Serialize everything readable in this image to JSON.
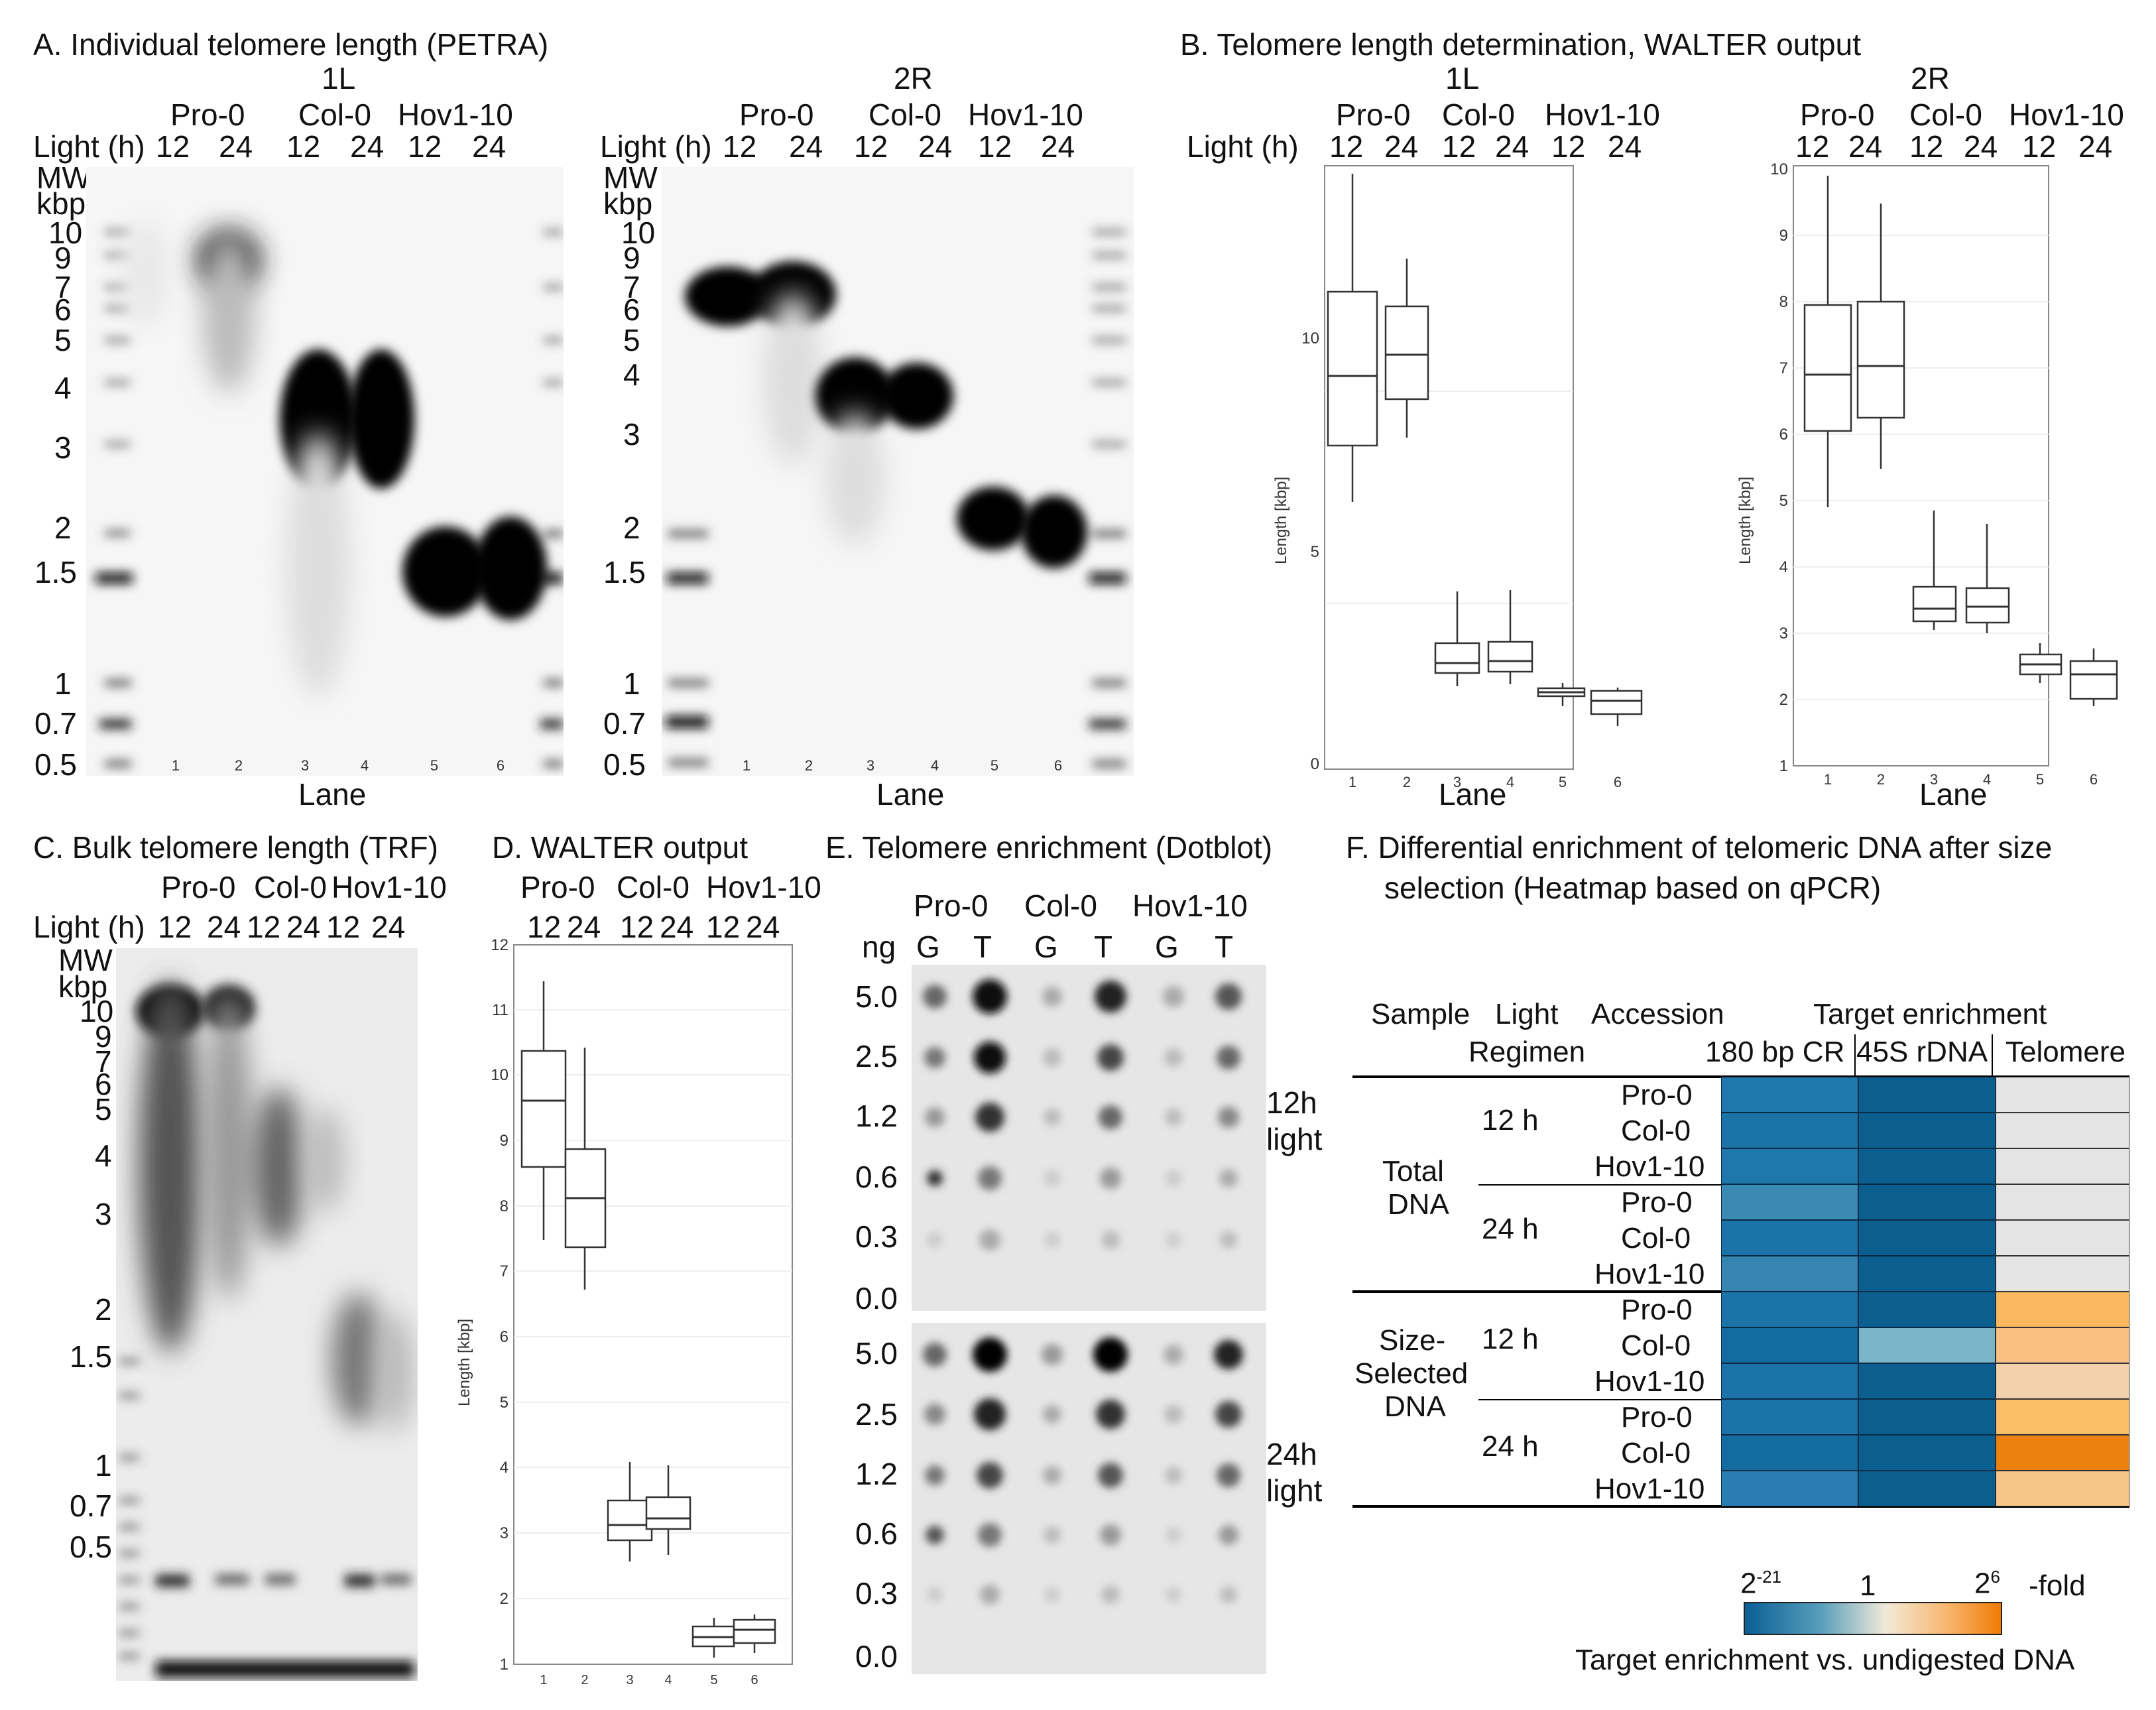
{
  "panelA": {
    "title": "A. Individual telomere length (PETRA)",
    "blots": [
      {
        "chrom": "1L",
        "accessions": [
          "Pro-0",
          "Col-0",
          "Hov1-10"
        ],
        "light_label": "Light (h)",
        "light": [
          "12",
          "24",
          "12",
          "24",
          "12",
          "24"
        ],
        "mw": "MW",
        "kbp": "kbp",
        "markers": [
          "10",
          "9",
          "7",
          "6",
          "5",
          "4",
          "3",
          "2",
          "1.5",
          "1",
          "0.7",
          "0.5"
        ],
        "lanes": [
          "1",
          "2",
          "3",
          "4",
          "5",
          "6"
        ],
        "lane_label": "Lane",
        "asterisk": "*"
      },
      {
        "chrom": "2R",
        "accessions": [
          "Pro-0",
          "Col-0",
          "Hov1-10"
        ],
        "light_label": "Light (h)",
        "light": [
          "12",
          "24",
          "12",
          "24",
          "12",
          "24"
        ],
        "mw": "MW",
        "kbp": "kbp",
        "markers": [
          "10",
          "9",
          "7",
          "6",
          "5",
          "4",
          "3",
          "2",
          "1.5",
          "1",
          "0.7",
          "0.5"
        ],
        "lanes": [
          "1",
          "2",
          "3",
          "4",
          "5",
          "6"
        ],
        "lane_label": "Lane"
      }
    ]
  },
  "panelB": {
    "title": "B. Telomere length determination, WALTER output",
    "light_label": "Light (h)",
    "plots": [
      {
        "chrom": "1L",
        "accessions": [
          "Pro-0",
          "Col-0",
          "Hov1-10"
        ],
        "light": [
          "12",
          "24",
          "12",
          "24",
          "12",
          "24"
        ],
        "ylabel": "Length [kbp]",
        "yticks": [
          "0",
          "5",
          "10"
        ],
        "lanes": [
          "1",
          "2",
          "3",
          "4",
          "5",
          "6"
        ],
        "xlabel": "Lane"
      },
      {
        "chrom": "2R",
        "accessions": [
          "Pro-0",
          "Col-0",
          "Hov1-10"
        ],
        "light": [
          "12",
          "24",
          "12",
          "24",
          "12",
          "24"
        ],
        "ylabel": "Length [kbp]",
        "yticks": [
          "1",
          "2",
          "3",
          "4",
          "5",
          "6",
          "7",
          "8",
          "9",
          "10"
        ],
        "lanes": [
          "1",
          "2",
          "3",
          "4",
          "5",
          "6"
        ],
        "xlabel": "Lane"
      }
    ]
  },
  "panelC": {
    "title": "C. Bulk telomere length (TRF)",
    "accessions": [
      "Pro-0",
      "Col-0",
      "Hov1-10"
    ],
    "light_label": "Light (h)",
    "light": [
      "12",
      "24",
      "12",
      "24",
      "12",
      "24"
    ],
    "mw": "MW",
    "kbp": "kbp",
    "markers": [
      "10",
      "9",
      "7",
      "6",
      "5",
      "4",
      "3",
      "2",
      "1.5",
      "1",
      "0.7",
      "0.5"
    ],
    "asterisks": [
      "**",
      "*"
    ]
  },
  "panelD": {
    "title": "D. WALTER output",
    "accessions": [
      "Pro-0",
      "Col-0",
      "Hov1-10"
    ],
    "light": [
      "12",
      "24",
      "12",
      "24",
      "12",
      "24"
    ],
    "ylabel": "Length [kbp]",
    "yticks": [
      "1",
      "2",
      "3",
      "4",
      "5",
      "6",
      "7",
      "8",
      "9",
      "10",
      "11",
      "12"
    ],
    "lanes": [
      "1",
      "2",
      "3",
      "4",
      "5",
      "6"
    ]
  },
  "panelE": {
    "title": "E. Telomere enrichment (Dotblot)",
    "accessions": [
      "Pro-0",
      "Col-0",
      "Hov1-10"
    ],
    "ng": "ng",
    "cols": [
      "G",
      "T",
      "G",
      "T",
      "G",
      "T"
    ],
    "amounts": [
      "5.0",
      "2.5",
      "1.2",
      "0.6",
      "0.3",
      "0.0"
    ],
    "blocks": [
      {
        "l1": "12h",
        "l2": "light"
      },
      {
        "l1": "24h",
        "l2": "light"
      }
    ]
  },
  "panelF": {
    "title1": "F. Differential enrichment of telomeric DNA after size",
    "title2": "selection (Heatmap based on qPCR)",
    "headers": {
      "sample": "Sample",
      "light1": "Light",
      "light2": "Regimen",
      "accession": "Accession",
      "target": "Target enrichment",
      "c1": "180 bp CR",
      "c2": "45S rDNA",
      "c3": "Telomere"
    },
    "groups": [
      {
        "l1": "Total",
        "l2": "DNA",
        "l3": "",
        "sub": [
          {
            "light": "12 h",
            "acc": [
              "Pro-0",
              "Col-0",
              "Hov1-10"
            ]
          },
          {
            "light": "24 h",
            "acc": [
              "Pro-0",
              "Col-0",
              "Hov1-10"
            ]
          }
        ]
      },
      {
        "l1": "Size-",
        "l2": "Selected",
        "l3": "DNA",
        "sub": [
          {
            "light": "12 h",
            "acc": [
              "Pro-0",
              "Col-0",
              "Hov1-10"
            ]
          },
          {
            "light": "24 h",
            "acc": [
              "Pro-0",
              "Col-0",
              "Hov1-10"
            ]
          }
        ]
      }
    ],
    "colors": [
      [
        "#1f78ab",
        "#0b5f8f",
        "#e4e4e4"
      ],
      [
        "#1b73a7",
        "#0b5f8f",
        "#e4e4e4"
      ],
      [
        "#1f78ab",
        "#0b5f8f",
        "#e4e4e4"
      ],
      [
        "#3b8ab4",
        "#0b5f8f",
        "#e4e4e4"
      ],
      [
        "#1b73a7",
        "#0b5f8f",
        "#e4e4e4"
      ],
      [
        "#3684b0",
        "#0b5f8f",
        "#e4e4e4"
      ],
      [
        "#1b73a7",
        "#0b5f8f",
        "#fbb85e"
      ],
      [
        "#136b9f",
        "#79b4c9",
        "#f9bf83"
      ],
      [
        "#1b73a7",
        "#0b5f8f",
        "#f2d1ad"
      ],
      [
        "#1b73a7",
        "#0b5f8f",
        "#fbbd68"
      ],
      [
        "#136b9f",
        "#0b5f8f",
        "#ec8110"
      ],
      [
        "#2a7db0",
        "#0b5f8f",
        "#f8c588"
      ]
    ],
    "scale": {
      "low_base": "2",
      "low_exp": "-21",
      "mid": "1",
      "high_base": "2",
      "high_exp": "6",
      "fold": "-fold",
      "caption": "Target enrichment vs. undigested DNA"
    }
  }
}
